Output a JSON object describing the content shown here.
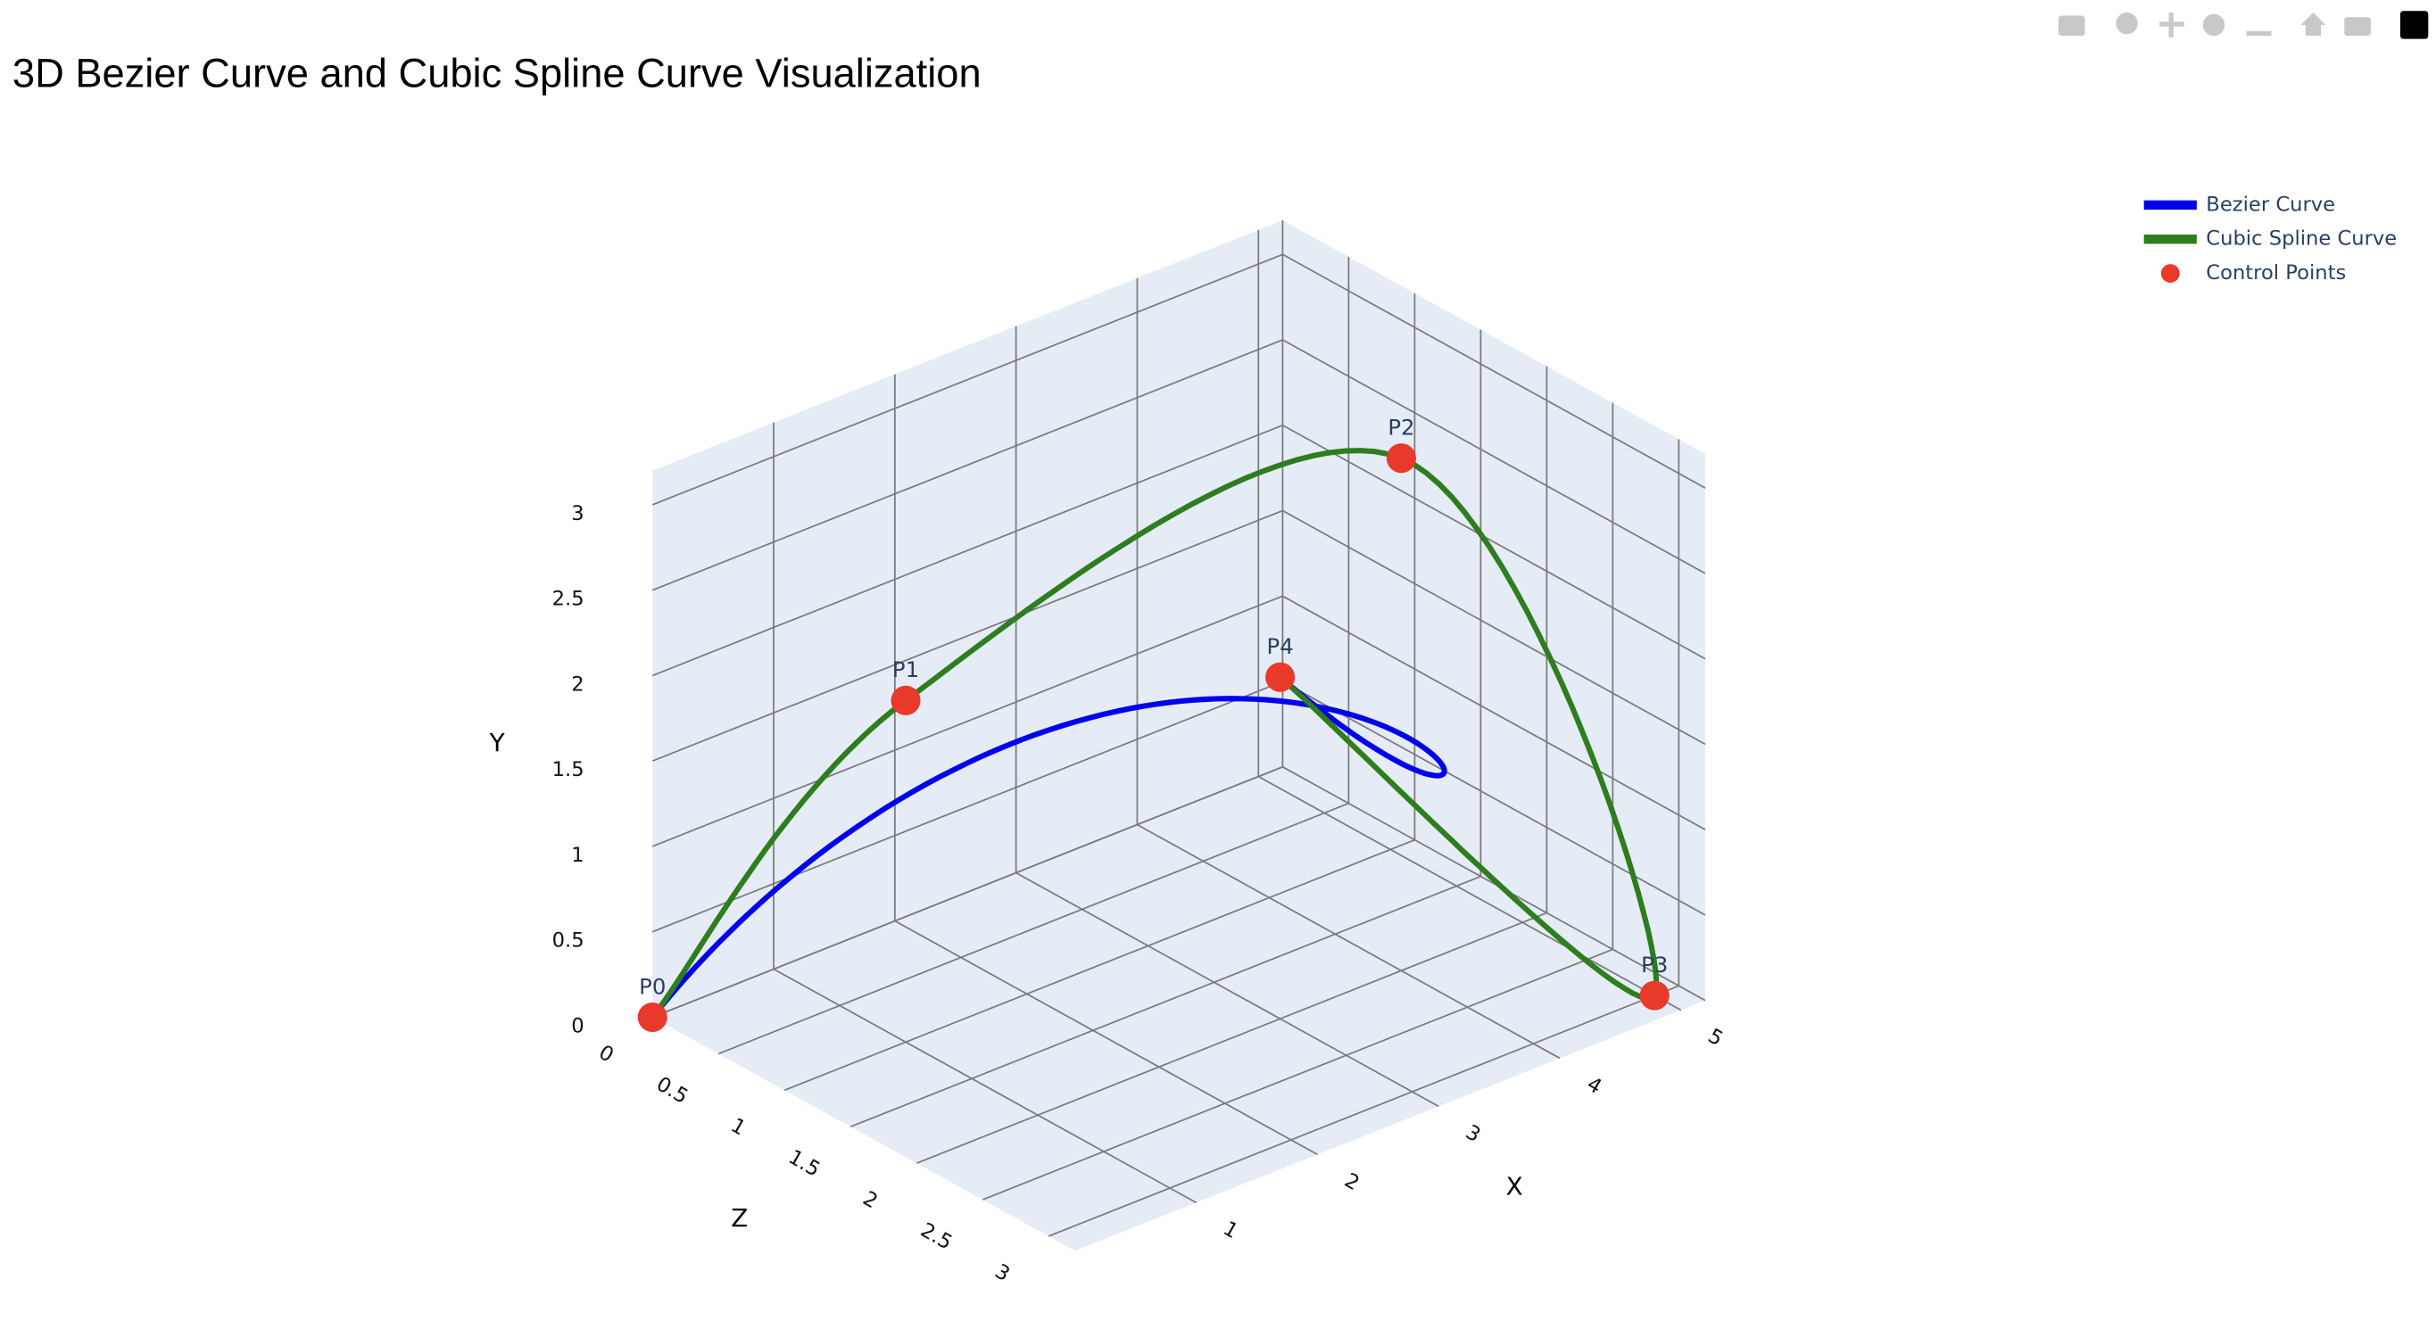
{
  "chart_data": {
    "type": "scatter3d",
    "title": "3D Bezier Curve and Cubic Spline Curve Visualization",
    "xlabel": "X",
    "ylabel": "Y",
    "zlabel": "Z",
    "xlim": [
      0,
      5.2
    ],
    "ylim": [
      0,
      3.2
    ],
    "zlim": [
      0,
      3.2
    ],
    "xticks": [
      1,
      2,
      3,
      4,
      5
    ],
    "yticks": [
      0,
      0.5,
      1,
      1.5,
      2,
      2.5,
      3
    ],
    "zticks": [
      0,
      0.5,
      1,
      1.5,
      2,
      2.5,
      3
    ],
    "series": [
      {
        "name": "Bezier Curve",
        "color": "#0000ee",
        "curve": "bezier"
      },
      {
        "name": "Cubic Spline Curve",
        "color": "#2e7d1e",
        "curve": "spline"
      },
      {
        "name": "Control Points",
        "color": "#e8392a",
        "x": [
          0,
          1,
          4,
          5,
          3
        ],
        "y": [
          0,
          2,
          3,
          0,
          2
        ],
        "z": [
          0,
          1,
          2,
          3,
          2
        ],
        "text": [
          "P0",
          "P1",
          "P2",
          "P3",
          "P4"
        ]
      }
    ]
  }
}
